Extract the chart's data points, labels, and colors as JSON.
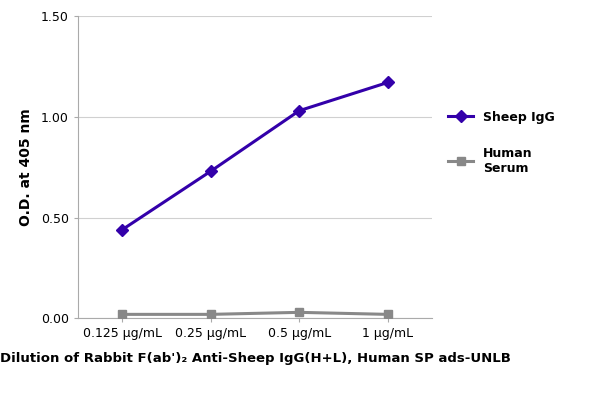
{
  "x_positions": [
    1,
    2,
    3,
    4
  ],
  "x_labels": [
    "0.125 μg/mL",
    "0.25 μg/mL",
    "0.5 μg/mL",
    "1 μg/mL"
  ],
  "sheep_igg": [
    0.44,
    0.73,
    1.03,
    1.17
  ],
  "human_serum": [
    0.02,
    0.02,
    0.03,
    0.02
  ],
  "sheep_color": "#3300AA",
  "human_color": "#888888",
  "ylim": [
    0.0,
    1.5
  ],
  "yticks": [
    0.0,
    0.5,
    1.0,
    1.5
  ],
  "ylabel": "O.D. at 405 nm",
  "xlabel": "Dilution of Rabbit F(ab')₂ Anti-Sheep IgG(H+L), Human SP ads-UNLB",
  "legend_sheep": "Sheep IgG",
  "legend_human": "Human\nSerum",
  "background_color": "#ffffff",
  "grid_color": "#d0d0d0",
  "spine_color": "#aaaaaa"
}
